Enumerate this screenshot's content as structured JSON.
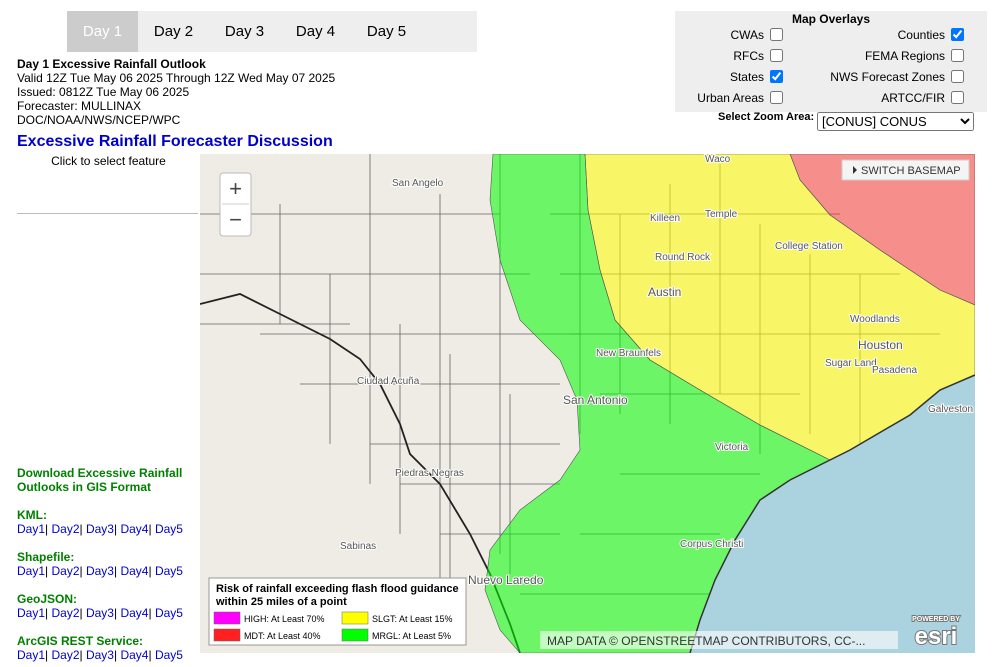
{
  "tabs": [
    "Day 1",
    "Day 2",
    "Day 3",
    "Day 4",
    "Day 5"
  ],
  "header": {
    "title": "Day 1 Excessive Rainfall Outlook",
    "valid": "Valid 12Z Tue May 06 2025 Through 12Z Wed May 07 2025",
    "issued": "Issued: 0812Z Tue May 06 2025",
    "forecaster": "Forecaster: MULLINAX",
    "agency": "DOC/NOAA/NWS/NCEP/WPC"
  },
  "discussion_link": "Excessive Rainfall Forecaster Discussion",
  "hint": "Click to select feature",
  "downloads": {
    "title": "Download Excessive Rainfall Outlooks in GIS Format",
    "separator": "|",
    "groups": [
      {
        "label": "KML:",
        "links": [
          "Day1",
          "Day2",
          "Day3",
          "Day4",
          "Day5"
        ]
      },
      {
        "label": "Shapefile:",
        "links": [
          "Day1",
          "Day2",
          "Day3",
          "Day4",
          "Day5"
        ]
      },
      {
        "label": "GeoJSON:",
        "links": [
          "Day1",
          "Day2",
          "Day3",
          "Day4",
          "Day5"
        ]
      },
      {
        "label": "ArcGIS REST Service:",
        "links": [
          "Day1",
          "Day2",
          "Day3",
          "Day4",
          "Day5"
        ]
      }
    ]
  },
  "overlays": {
    "title": "Map Overlays",
    "items": [
      {
        "label": "CWAs",
        "checked": false
      },
      {
        "label": "Counties",
        "checked": true
      },
      {
        "label": "RFCs",
        "checked": false
      },
      {
        "label": "FEMA Regions",
        "checked": false
      },
      {
        "label": "States",
        "checked": true
      },
      {
        "label": "NWS Forecast Zones",
        "checked": false
      },
      {
        "label": "Urban Areas",
        "checked": false
      },
      {
        "label": "ARTCC/FIR",
        "checked": false
      }
    ],
    "zoom_label": "Select Zoom Area:",
    "zoom_value": "[CONUS] CONUS"
  },
  "map": {
    "switch_basemap": "SWITCH BASEMAP",
    "zoom_in": "+",
    "zoom_out": "−",
    "labels": [
      "San Angelo",
      "Waco",
      "Killeen",
      "Temple",
      "College Station",
      "Round Rock",
      "Austin",
      "Woodlands",
      "Houston",
      "Sugar Land",
      "Pasadena",
      "New Braunfels",
      "San Antonio",
      "Ciudad Acuña",
      "Victoria",
      "Piedras Negras",
      "Sabinas",
      "Corpus Christi",
      "Nuevo Laredo",
      "Galveston"
    ],
    "legend": {
      "title": [
        "Risk of rainfall exceeding flash flood guidance",
        "within 25 miles of a point"
      ],
      "items": [
        {
          "label": "HIGH: At Least 70%",
          "color": "#ff00ff"
        },
        {
          "label": "SLGT: At Least 15%",
          "color": "#ffff00"
        },
        {
          "label": "MDT: At Least 40%",
          "color": "#ff2020"
        },
        {
          "label": "MRGL: At Least 5%",
          "color": "#00ff00"
        }
      ]
    },
    "attribution": "MAP DATA © OPENSTREETMAP CONTRIBUTORS, CC-...",
    "esri_powered": "POWERED BY",
    "esri": "esri"
  }
}
